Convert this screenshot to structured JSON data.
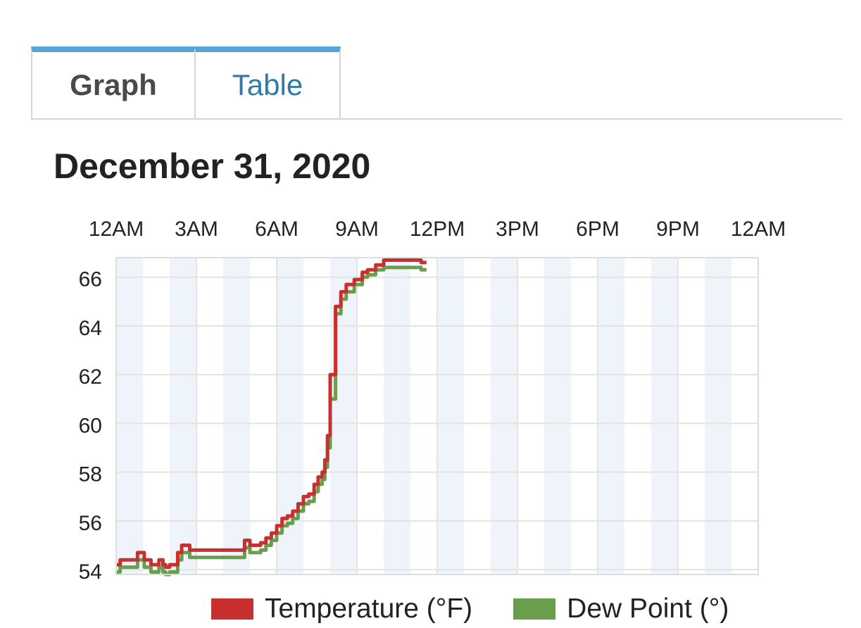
{
  "tabs": [
    {
      "label": "Graph",
      "active": true
    },
    {
      "label": "Table",
      "active": false
    }
  ],
  "date_heading": "December 31, 2020",
  "colors": {
    "tab_accent": "#57a5d6",
    "temperature": "#c8302f",
    "dew_point": "#6a9e4d",
    "band": "#eef4f9",
    "grid": "#e3e3e3"
  },
  "chart_data": {
    "type": "line",
    "x_ticks": [
      "12AM",
      "3AM",
      "6AM",
      "9AM",
      "12PM",
      "3PM",
      "6PM",
      "9PM",
      "12AM"
    ],
    "x_range_hours": [
      0,
      24
    ],
    "y_ticks": [
      54,
      56,
      58,
      60,
      62,
      64,
      66
    ],
    "ylim": [
      53.8,
      66.8
    ],
    "grid": true,
    "legend_placement": "bottom",
    "series": [
      {
        "name": "Temperature (°F)",
        "color": "#c8302f",
        "x": [
          0,
          0.15,
          0.6,
          0.8,
          0.95,
          1.05,
          1.3,
          1.5,
          1.6,
          1.75,
          1.85,
          2.0,
          2.15,
          2.3,
          2.45,
          2.6,
          2.75,
          2.9,
          3.1,
          3.3,
          3.5,
          3.8,
          4.0,
          4.2,
          4.5,
          4.8,
          5.0,
          5.2,
          5.4,
          5.6,
          5.8,
          6.0,
          6.2,
          6.4,
          6.6,
          6.8,
          7.0,
          7.2,
          7.4,
          7.55,
          7.7,
          7.8,
          7.9,
          8.0,
          8.2,
          8.4,
          8.6,
          8.9,
          9.2,
          9.4,
          9.7,
          10.0,
          10.3,
          10.6,
          11.0,
          11.2,
          11.4,
          11.6
        ],
        "y": [
          54.2,
          54.4,
          54.4,
          54.7,
          54.7,
          54.4,
          54.2,
          54.2,
          54.4,
          54.2,
          54.1,
          54.2,
          54.2,
          54.7,
          55.0,
          55.0,
          54.8,
          54.8,
          54.8,
          54.8,
          54.8,
          54.8,
          54.8,
          54.8,
          54.8,
          55.2,
          55.0,
          55.0,
          55.1,
          55.3,
          55.5,
          55.8,
          56.1,
          56.2,
          56.4,
          56.7,
          57.0,
          57.1,
          57.5,
          57.8,
          58.0,
          58.5,
          59.5,
          62.0,
          64.8,
          65.4,
          65.7,
          65.9,
          66.2,
          66.3,
          66.5,
          66.7,
          66.7,
          66.7,
          66.7,
          66.7,
          66.6,
          66.6
        ]
      },
      {
        "name": "Dew Point (°)",
        "color": "#6a9e4d",
        "x": [
          0,
          0.15,
          0.6,
          0.8,
          0.95,
          1.05,
          1.3,
          1.5,
          1.6,
          1.75,
          1.85,
          2.0,
          2.15,
          2.3,
          2.45,
          2.6,
          2.75,
          2.9,
          3.1,
          3.3,
          3.5,
          3.8,
          4.0,
          4.2,
          4.5,
          4.8,
          5.0,
          5.2,
          5.4,
          5.6,
          5.8,
          6.0,
          6.2,
          6.4,
          6.6,
          6.8,
          7.0,
          7.2,
          7.4,
          7.55,
          7.7,
          7.8,
          7.9,
          8.0,
          8.2,
          8.4,
          8.6,
          8.9,
          9.2,
          9.4,
          9.7,
          10.0,
          10.3,
          10.6,
          11.0,
          11.2,
          11.4,
          11.6
        ],
        "y": [
          53.9,
          54.1,
          54.1,
          54.4,
          54.4,
          54.1,
          53.9,
          53.9,
          54.1,
          53.9,
          53.8,
          53.9,
          53.9,
          54.4,
          54.7,
          54.7,
          54.5,
          54.5,
          54.5,
          54.5,
          54.5,
          54.5,
          54.5,
          54.5,
          54.5,
          54.9,
          54.7,
          54.7,
          54.8,
          55.0,
          55.2,
          55.5,
          55.8,
          55.9,
          56.1,
          56.4,
          56.7,
          56.8,
          57.2,
          57.5,
          57.7,
          58.2,
          59.0,
          61.0,
          64.5,
          65.1,
          65.4,
          65.7,
          66.0,
          66.1,
          66.3,
          66.4,
          66.4,
          66.4,
          66.4,
          66.4,
          66.3,
          66.3
        ]
      }
    ]
  }
}
